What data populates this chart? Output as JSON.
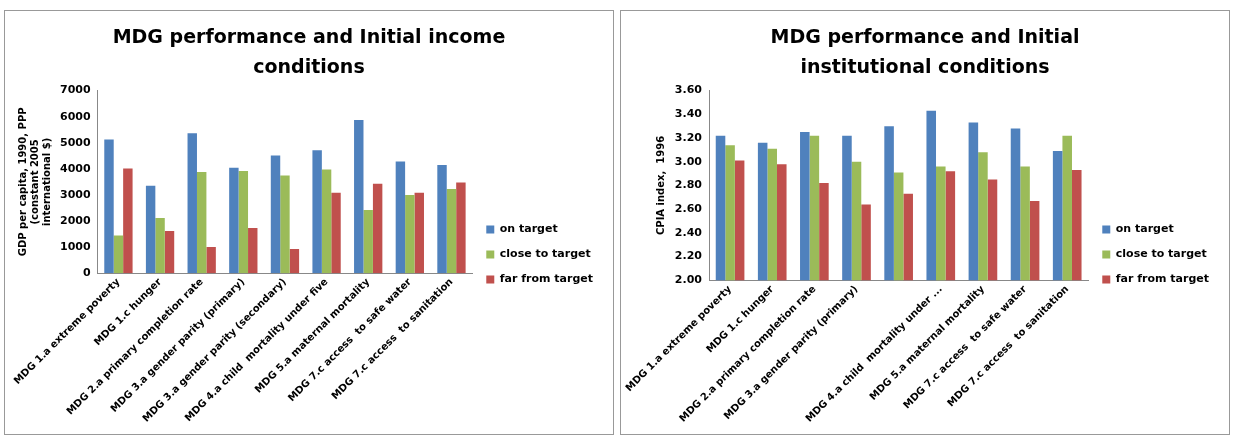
{
  "chart_data": [
    {
      "type": "bar",
      "title": "MDG performance and Initial income conditions",
      "ylabel": "GDP per capita, 1990, PPP (constant 2005 international $)",
      "categories": [
        "MDG 1.a extreme poverty",
        "MDG 1.c hunger",
        "MDG 2.a primary completion rate",
        "MDG 3.a gender parity (primary)",
        "MDG 3.a gender parity (secondary)",
        "MDG 4.a child  mortality under five",
        "MDG 5.a maternal mortality",
        "MDG 7.c access  to safe water",
        "MDG 7.c access  to sanitation"
      ],
      "series": [
        {
          "name": "on target",
          "color": "#4f81bd",
          "values": [
            5120,
            3350,
            5360,
            4040,
            4510,
            4710,
            5870,
            4280,
            4150
          ]
        },
        {
          "name": "close to target",
          "color": "#9bbb59",
          "values": [
            1440,
            2110,
            3880,
            3920,
            3740,
            3970,
            2420,
            3000,
            3230
          ]
        },
        {
          "name": "far from target",
          "color": "#c0504d",
          "values": [
            4010,
            1620,
            1000,
            1730,
            930,
            3080,
            3430,
            3080,
            3480
          ]
        }
      ],
      "ylim": [
        0,
        7000
      ],
      "yticks": [
        0,
        1000,
        2000,
        3000,
        4000,
        5000,
        6000,
        7000
      ],
      "legend": "right"
    },
    {
      "type": "bar",
      "title": "MDG performance and Initial institutional conditions",
      "ylabel": "CPIA index,  1996",
      "categories": [
        "MDG 1.a extreme poverty",
        "MDG 1.c hunger",
        "MDG 2.a primary completion rate",
        "MDG 3.a gender parity (primary)",
        null,
        "MDG 4.a child  mortality under ...",
        "MDG 5.a maternal mortality",
        "MDG 7.c access  to safe water",
        "MDG 7.c access  to sanitation"
      ],
      "series": [
        {
          "name": "on target",
          "color": "#4f81bd",
          "values": [
            3.22,
            3.16,
            3.25,
            3.22,
            3.3,
            3.43,
            3.33,
            3.28,
            3.09
          ]
        },
        {
          "name": "close to target",
          "color": "#9bbb59",
          "values": [
            3.14,
            3.11,
            3.22,
            3.0,
            2.91,
            2.96,
            3.08,
            2.96,
            3.22
          ]
        },
        {
          "name": "far from target",
          "color": "#c0504d",
          "values": [
            3.01,
            2.98,
            2.82,
            2.64,
            2.73,
            2.92,
            2.85,
            2.67,
            2.93
          ]
        }
      ],
      "ylim": [
        2.0,
        3.6
      ],
      "yticks": [
        {
          "value": 2.0,
          "label": "2.00"
        },
        {
          "value": 2.2,
          "label": "2.20"
        },
        {
          "value": 2.4,
          "label": "2.40"
        },
        {
          "value": 2.6,
          "label": "2.60"
        },
        {
          "value": 2.8,
          "label": "2.80"
        },
        {
          "value": 3.0,
          "label": "3.00"
        },
        {
          "value": 3.2,
          "label": "3.20"
        },
        {
          "value": 3.4,
          "label": "3.40"
        },
        {
          "value": 3.6,
          "label": "3.60"
        }
      ],
      "legend": "right"
    }
  ]
}
